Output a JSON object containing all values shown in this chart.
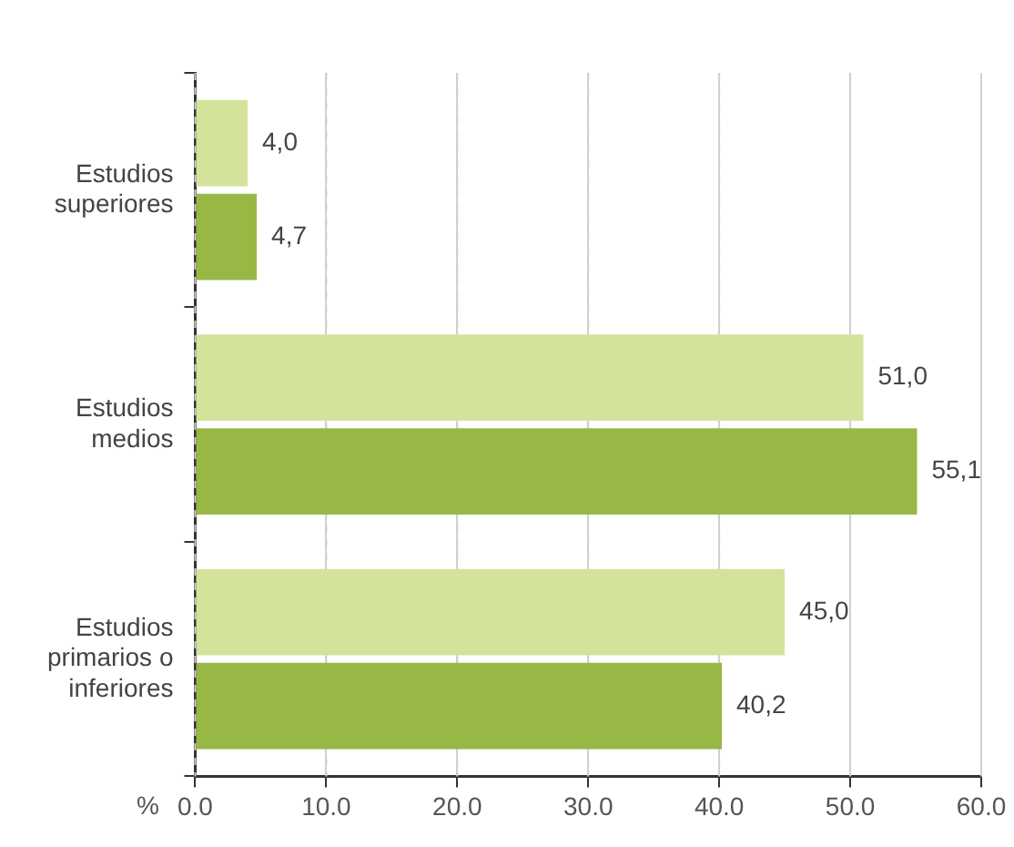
{
  "chart_data": {
    "type": "bar",
    "orientation": "horizontal",
    "xlabel": "%",
    "categories": [
      "Estudios superiores",
      "Estudios medios",
      "Estudios primarios o inferiores"
    ],
    "series": [
      {
        "color": "#d3e39b",
        "values": [
          4.0,
          51.0,
          45.0
        ],
        "value_labels": [
          "4,0",
          "51,0",
          "45,0"
        ]
      },
      {
        "color": "#98b845",
        "values": [
          4.7,
          55.1,
          40.2
        ],
        "value_labels": [
          "4,7",
          "55,1",
          "40,2"
        ]
      }
    ],
    "xlim": [
      0,
      60
    ],
    "xticks": [
      {
        "value": 0,
        "label": "0.0"
      },
      {
        "value": 10,
        "label": "10.0"
      },
      {
        "value": 20,
        "label": "20.0"
      },
      {
        "value": 30,
        "label": "30.0"
      },
      {
        "value": 40,
        "label": "40.0"
      },
      {
        "value": 50,
        "label": "50.0"
      },
      {
        "value": 60,
        "label": "60.0"
      }
    ],
    "grid": "x",
    "legend": false
  }
}
